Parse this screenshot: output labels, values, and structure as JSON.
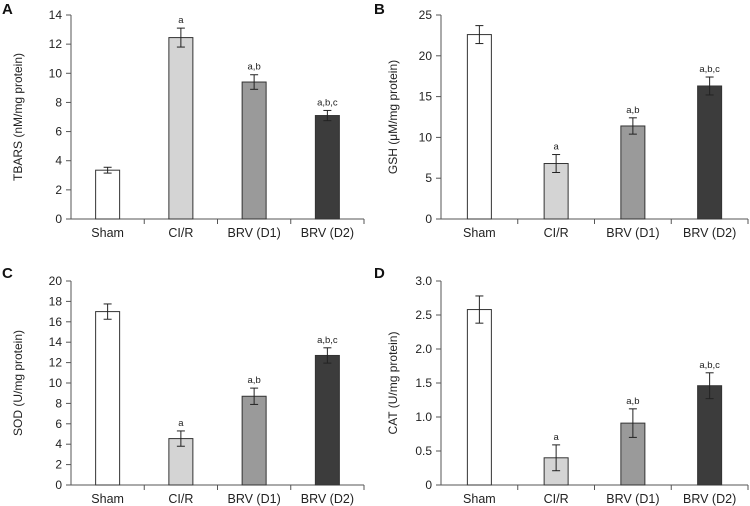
{
  "figure": {
    "bar_colors": [
      "#ffffff",
      "#d4d4d4",
      "#9a9a9a",
      "#3c3c3c"
    ],
    "stroke_color": "#333333"
  },
  "chart_data": [
    {
      "panel": "A",
      "type": "bar",
      "categories": [
        "Sham",
        "CI/R",
        "BRV (D1)",
        "BRV (D2)"
      ],
      "values": [
        3.35,
        12.45,
        9.4,
        7.1
      ],
      "errors": [
        0.2,
        0.65,
        0.5,
        0.35
      ],
      "annotations": [
        "",
        "a",
        "a,b",
        "a,b,c"
      ],
      "ylabel": "TBARS (nM/mg protein)",
      "ylim": [
        0,
        14
      ],
      "yticks": [
        0,
        2,
        4,
        6,
        8,
        10,
        12,
        14
      ],
      "ytick_labels": [
        "0",
        "2",
        "4",
        "6",
        "8",
        "10",
        "12",
        "14"
      ]
    },
    {
      "panel": "B",
      "type": "bar",
      "categories": [
        "Sham",
        "CI/R",
        "BRV (D1)",
        "BRV (D2)"
      ],
      "values": [
        22.6,
        6.8,
        11.4,
        16.3
      ],
      "errors": [
        1.1,
        1.1,
        1.0,
        1.1
      ],
      "annotations": [
        "",
        "a",
        "a,b",
        "a,b,c"
      ],
      "ylabel": "GSH (μM/mg protein)",
      "ylim": [
        0,
        25
      ],
      "yticks": [
        0,
        5,
        10,
        15,
        20,
        25
      ],
      "ytick_labels": [
        "0",
        "5",
        "10",
        "15",
        "20",
        "25"
      ]
    },
    {
      "panel": "C",
      "type": "bar",
      "categories": [
        "Sham",
        "CI/R",
        "BRV (D1)",
        "BRV (D2)"
      ],
      "values": [
        17.0,
        4.55,
        8.7,
        12.7
      ],
      "errors": [
        0.75,
        0.75,
        0.8,
        0.75
      ],
      "annotations": [
        "",
        "a",
        "a,b",
        "a,b,c"
      ],
      "ylabel": "SOD (U/mg protein)",
      "ylim": [
        0,
        20
      ],
      "yticks": [
        0,
        2,
        4,
        6,
        8,
        10,
        12,
        14,
        16,
        18,
        20
      ],
      "ytick_labels": [
        "0",
        "2",
        "4",
        "6",
        "8",
        "10",
        "12",
        "14",
        "16",
        "18",
        "20"
      ]
    },
    {
      "panel": "D",
      "type": "bar",
      "categories": [
        "Sham",
        "CI/R",
        "BRV (D1)",
        "BRV (D2)"
      ],
      "values": [
        2.58,
        0.4,
        0.91,
        1.46
      ],
      "errors": [
        0.2,
        0.19,
        0.21,
        0.19
      ],
      "annotations": [
        "",
        "a",
        "a,b",
        "a,b,c"
      ],
      "ylabel": "CAT (U/mg protein)",
      "ylim": [
        0,
        3
      ],
      "yticks": [
        0,
        0.5,
        1,
        1.5,
        2,
        2.5,
        3
      ],
      "ytick_labels": [
        "0",
        "0.5",
        "1.0",
        "1.5",
        "2.0",
        "2.5",
        "3.0"
      ]
    }
  ]
}
